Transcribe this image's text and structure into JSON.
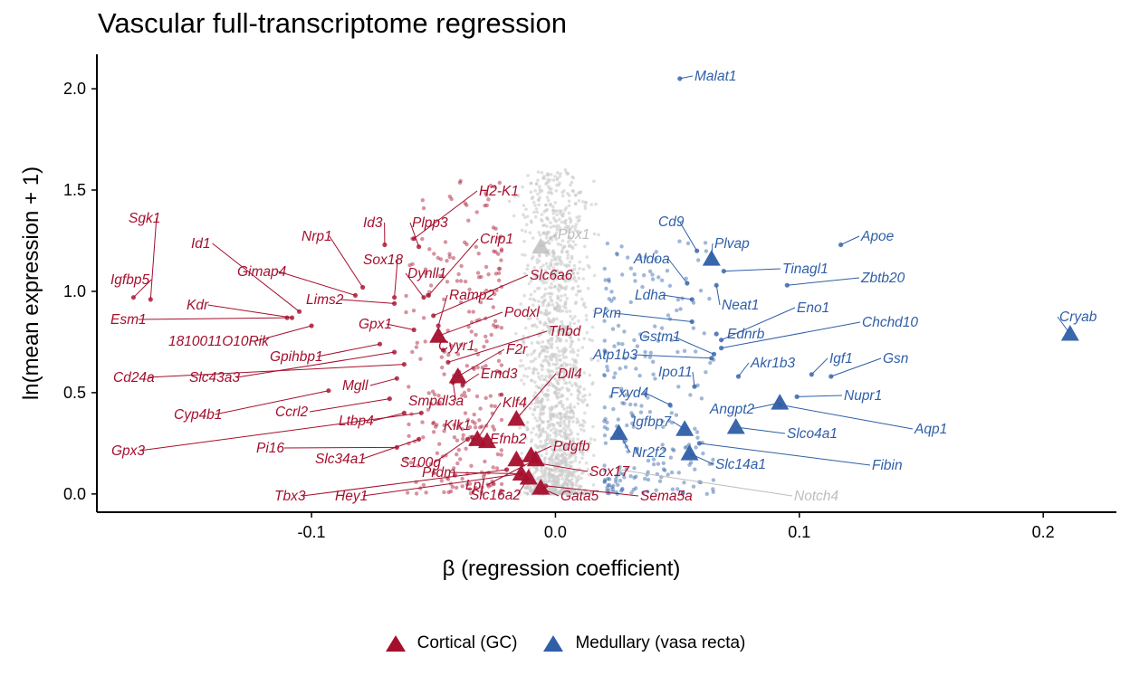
{
  "chart_data": {
    "type": "scatter",
    "title": "Vascular full-transcriptome regression",
    "xlabel": "β (regression coefficient)",
    "ylabel": "ln(mean expression + 1)",
    "xlim": [
      -0.188,
      0.23
    ],
    "ylim": [
      -0.09,
      2.17
    ],
    "xticks": [
      -0.1,
      0.0,
      0.1,
      0.2
    ],
    "xtick_labels": [
      "-0.1",
      "0.0",
      "0.1",
      "0.2"
    ],
    "yticks": [
      0.0,
      0.5,
      1.0,
      1.5,
      2.0
    ],
    "ytick_labels": [
      "0.0",
      "0.5",
      "1.0",
      "1.5",
      "2.0"
    ],
    "grid": false,
    "legend_position": "bottom",
    "colors": {
      "cortical": "#A50F2D",
      "medullary": "#2F5FA7",
      "neutral": "#BDBDBD"
    },
    "legend": [
      {
        "key": "cortical",
        "label": "Cortical (GC)"
      },
      {
        "key": "medullary",
        "label": "Medullary (vasa recta)"
      }
    ],
    "highlighted": [
      {
        "gene": "Sgk1",
        "x": -0.166,
        "y": 0.96,
        "group": "cortical",
        "shape": "point"
      },
      {
        "gene": "Igfbp5",
        "x": -0.173,
        "y": 0.97,
        "group": "cortical",
        "shape": "point"
      },
      {
        "gene": "Id1",
        "x": -0.105,
        "y": 0.9,
        "group": "cortical",
        "shape": "point"
      },
      {
        "gene": "Kdr",
        "x": -0.108,
        "y": 0.87,
        "group": "cortical",
        "shape": "point"
      },
      {
        "gene": "Esm1",
        "x": -0.11,
        "y": 0.87,
        "group": "cortical",
        "shape": "point"
      },
      {
        "gene": "Nrp1",
        "x": -0.079,
        "y": 1.02,
        "group": "cortical",
        "shape": "point"
      },
      {
        "gene": "Gimap4",
        "x": -0.082,
        "y": 0.98,
        "group": "cortical",
        "shape": "point"
      },
      {
        "gene": "Id3",
        "x": -0.07,
        "y": 1.23,
        "group": "cortical",
        "shape": "point"
      },
      {
        "gene": "Sox18",
        "x": -0.066,
        "y": 0.97,
        "group": "cortical",
        "shape": "point"
      },
      {
        "gene": "Lims2",
        "x": -0.066,
        "y": 0.94,
        "group": "cortical",
        "shape": "point"
      },
      {
        "gene": "1810011O10Rik",
        "x": -0.1,
        "y": 0.83,
        "group": "cortical",
        "shape": "point"
      },
      {
        "gene": "Gpx1",
        "x": -0.058,
        "y": 0.81,
        "group": "cortical",
        "shape": "point"
      },
      {
        "gene": "Gpihbp1",
        "x": -0.072,
        "y": 0.74,
        "group": "cortical",
        "shape": "point"
      },
      {
        "gene": "Slc43a3",
        "x": -0.066,
        "y": 0.7,
        "group": "cortical",
        "shape": "point"
      },
      {
        "gene": "Cd24a",
        "x": -0.062,
        "y": 0.64,
        "group": "cortical",
        "shape": "point"
      },
      {
        "gene": "Mgll",
        "x": -0.065,
        "y": 0.57,
        "group": "cortical",
        "shape": "point"
      },
      {
        "gene": "Cyp4b1",
        "x": -0.093,
        "y": 0.51,
        "group": "cortical",
        "shape": "point"
      },
      {
        "gene": "Ccrl2",
        "x": -0.068,
        "y": 0.47,
        "group": "cortical",
        "shape": "point"
      },
      {
        "gene": "Ltbp4",
        "x": -0.062,
        "y": 0.4,
        "group": "cortical",
        "shape": "point"
      },
      {
        "gene": "Gpx3",
        "x": -0.055,
        "y": 0.4,
        "group": "cortical",
        "shape": "point"
      },
      {
        "gene": "Pi16",
        "x": -0.065,
        "y": 0.23,
        "group": "cortical",
        "shape": "point"
      },
      {
        "gene": "Slc34a1",
        "x": -0.056,
        "y": 0.27,
        "group": "cortical",
        "shape": "point"
      },
      {
        "gene": "H2-K1",
        "x": -0.058,
        "y": 1.26,
        "group": "cortical",
        "shape": "point"
      },
      {
        "gene": "Plpp3",
        "x": -0.056,
        "y": 1.22,
        "group": "cortical",
        "shape": "point"
      },
      {
        "gene": "Crip1",
        "x": -0.052,
        "y": 0.98,
        "group": "cortical",
        "shape": "point"
      },
      {
        "gene": "Dynll1",
        "x": -0.054,
        "y": 0.97,
        "group": "cortical",
        "shape": "point"
      },
      {
        "gene": "Slc6a6",
        "x": -0.05,
        "y": 0.88,
        "group": "cortical",
        "shape": "point"
      },
      {
        "gene": "Ramp2",
        "x": -0.048,
        "y": 0.83,
        "group": "cortical",
        "shape": "point"
      },
      {
        "gene": "Podxl",
        "x": -0.048,
        "y": 0.78,
        "group": "cortical",
        "shape": "triangle"
      },
      {
        "gene": "Thbd",
        "x": -0.044,
        "y": 0.65,
        "group": "cortical",
        "shape": "point"
      },
      {
        "gene": "Cyyr1",
        "x": -0.046,
        "y": 0.71,
        "group": "cortical",
        "shape": "point"
      },
      {
        "gene": "F2r",
        "x": -0.04,
        "y": 0.58,
        "group": "cortical",
        "shape": "triangle"
      },
      {
        "gene": "Smpdl3a",
        "x": -0.042,
        "y": 0.55,
        "group": "cortical",
        "shape": "point"
      },
      {
        "gene": "Emd3",
        "x": -0.038,
        "y": 0.54,
        "group": "cortical",
        "shape": "point"
      },
      {
        "gene": "Klk1",
        "x": -0.034,
        "y": 0.28,
        "group": "cortical",
        "shape": "point"
      },
      {
        "gene": "S100g",
        "x": -0.036,
        "y": 0.27,
        "group": "cortical",
        "shape": "point"
      },
      {
        "gene": "Dll4",
        "x": -0.016,
        "y": 0.37,
        "group": "cortical",
        "shape": "triangle"
      },
      {
        "gene": "Klf4",
        "x": -0.032,
        "y": 0.27,
        "group": "cortical",
        "shape": "triangle"
      },
      {
        "gene": "Efnb2",
        "x": -0.028,
        "y": 0.26,
        "group": "cortical",
        "shape": "triangle"
      },
      {
        "gene": "Pdgfb",
        "x": -0.01,
        "y": 0.19,
        "group": "cortical",
        "shape": "triangle"
      },
      {
        "gene": "Sox17",
        "x": -0.016,
        "y": 0.17,
        "group": "cortical",
        "shape": "triangle"
      },
      {
        "gene": "Prdm",
        "x": -0.014,
        "y": 0.1,
        "group": "cortical",
        "shape": "triangle"
      },
      {
        "gene": "Lpl",
        "x": -0.008,
        "y": 0.17,
        "group": "cortical",
        "shape": "triangle"
      },
      {
        "gene": "Slc16a2",
        "x": -0.011,
        "y": 0.08,
        "group": "cortical",
        "shape": "triangle"
      },
      {
        "gene": "Hey1",
        "x": -0.014,
        "y": 0.1,
        "group": "cortical",
        "shape": "point"
      },
      {
        "gene": "Tbx3",
        "x": -0.02,
        "y": 0.12,
        "group": "cortical",
        "shape": "point"
      },
      {
        "gene": "Gata5",
        "x": -0.006,
        "y": 0.03,
        "group": "cortical",
        "shape": "triangle"
      },
      {
        "gene": "Sema5a",
        "x": -0.004,
        "y": 0.04,
        "group": "cortical",
        "shape": "point"
      },
      {
        "gene": "Pbx1",
        "x": -0.006,
        "y": 1.22,
        "group": "neutral",
        "shape": "triangle"
      },
      {
        "gene": "Notch4",
        "x": 0.026,
        "y": 0.12,
        "group": "neutral",
        "shape": "point"
      },
      {
        "gene": "Malat1",
        "x": 0.051,
        "y": 2.05,
        "group": "medullary",
        "shape": "point"
      },
      {
        "gene": "Cd9",
        "x": 0.058,
        "y": 1.2,
        "group": "medullary",
        "shape": "point"
      },
      {
        "gene": "Plvap",
        "x": 0.064,
        "y": 1.16,
        "group": "medullary",
        "shape": "triangle"
      },
      {
        "gene": "Apoe",
        "x": 0.117,
        "y": 1.23,
        "group": "medullary",
        "shape": "point"
      },
      {
        "gene": "Tinagl1",
        "x": 0.069,
        "y": 1.1,
        "group": "medullary",
        "shape": "point"
      },
      {
        "gene": "Zbtb20",
        "x": 0.095,
        "y": 1.03,
        "group": "medullary",
        "shape": "point"
      },
      {
        "gene": "Aldoa",
        "x": 0.054,
        "y": 1.04,
        "group": "medullary",
        "shape": "point"
      },
      {
        "gene": "Neat1",
        "x": 0.066,
        "y": 1.03,
        "group": "medullary",
        "shape": "point"
      },
      {
        "gene": "Ldha",
        "x": 0.056,
        "y": 0.96,
        "group": "medullary",
        "shape": "point"
      },
      {
        "gene": "Eno1",
        "x": 0.068,
        "y": 0.76,
        "group": "medullary",
        "shape": "point"
      },
      {
        "gene": "Chchd10",
        "x": 0.068,
        "y": 0.72,
        "group": "medullary",
        "shape": "point"
      },
      {
        "gene": "Pkm",
        "x": 0.056,
        "y": 0.85,
        "group": "medullary",
        "shape": "point"
      },
      {
        "gene": "Ednrb",
        "x": 0.066,
        "y": 0.79,
        "group": "medullary",
        "shape": "point"
      },
      {
        "gene": "Gstm1",
        "x": 0.065,
        "y": 0.69,
        "group": "medullary",
        "shape": "point"
      },
      {
        "gene": "Atp1b3",
        "x": 0.064,
        "y": 0.67,
        "group": "medullary",
        "shape": "point"
      },
      {
        "gene": "Akr1b3",
        "x": 0.075,
        "y": 0.58,
        "group": "medullary",
        "shape": "point"
      },
      {
        "gene": "Ipo11",
        "x": 0.057,
        "y": 0.53,
        "group": "medullary",
        "shape": "point"
      },
      {
        "gene": "Igf1",
        "x": 0.105,
        "y": 0.59,
        "group": "medullary",
        "shape": "point"
      },
      {
        "gene": "Gsn",
        "x": 0.113,
        "y": 0.58,
        "group": "medullary",
        "shape": "point"
      },
      {
        "gene": "Fxyd4",
        "x": 0.047,
        "y": 0.44,
        "group": "medullary",
        "shape": "point"
      },
      {
        "gene": "Nupr1",
        "x": 0.099,
        "y": 0.48,
        "group": "medullary",
        "shape": "point"
      },
      {
        "gene": "Angpt2",
        "x": 0.092,
        "y": 0.45,
        "group": "medullary",
        "shape": "triangle"
      },
      {
        "gene": "Aqp1",
        "x": 0.092,
        "y": 0.44,
        "group": "medullary",
        "shape": "point"
      },
      {
        "gene": "Igfbp7",
        "x": 0.053,
        "y": 0.32,
        "group": "medullary",
        "shape": "triangle"
      },
      {
        "gene": "Slco4a1",
        "x": 0.074,
        "y": 0.33,
        "group": "medullary",
        "shape": "triangle"
      },
      {
        "gene": "Nr2f2",
        "x": 0.026,
        "y": 0.3,
        "group": "medullary",
        "shape": "triangle"
      },
      {
        "gene": "Slc14a1",
        "x": 0.055,
        "y": 0.2,
        "group": "medullary",
        "shape": "triangle"
      },
      {
        "gene": "Fibin",
        "x": 0.059,
        "y": 0.25,
        "group": "medullary",
        "shape": "point"
      },
      {
        "gene": "Cryab",
        "x": 0.211,
        "y": 0.79,
        "group": "medullary",
        "shape": "triangle"
      }
    ]
  }
}
